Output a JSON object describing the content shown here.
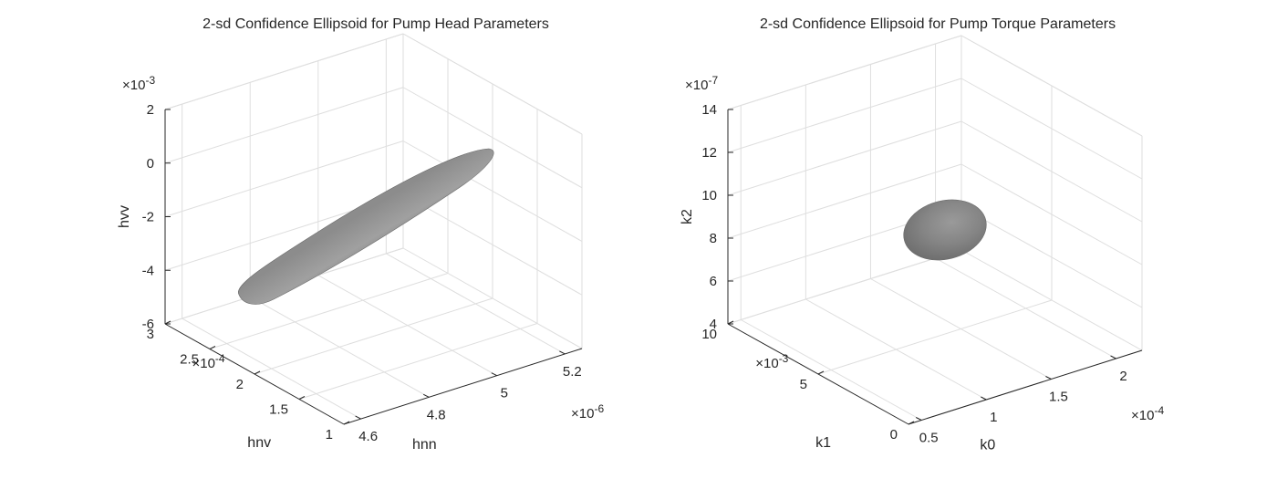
{
  "chart_data": [
    {
      "type": "3d-surface",
      "title": "2-sd Confidence Ellipsoid for Pump Head Parameters",
      "surface": "ellipsoid",
      "color": "#808080",
      "grid": true,
      "x": {
        "label": "hnn",
        "lim": [
          4.55,
          5.25
        ],
        "ticks": [
          4.6,
          4.8,
          5,
          5.2
        ],
        "tick_labels": [
          "4.6",
          "4.8",
          "5",
          "5.2"
        ],
        "multiplier": "×10",
        "exponent": "-6"
      },
      "y": {
        "label": "hnv",
        "lim": [
          1,
          3
        ],
        "ticks": [
          1,
          1.5,
          2,
          2.5,
          3
        ],
        "tick_labels": [
          "1",
          "1.5",
          "2",
          "2.5",
          "3"
        ],
        "multiplier": "×10",
        "exponent": "-4"
      },
      "z": {
        "label": "hvv",
        "lim": [
          -6,
          2
        ],
        "ticks": [
          -6,
          -4,
          -2,
          0,
          2
        ],
        "tick_labels": [
          "-6",
          "-4",
          "-2",
          "0",
          "2"
        ],
        "multiplier": "×10",
        "exponent": "-3"
      }
    },
    {
      "type": "3d-surface",
      "title": "2-sd Confidence Ellipsoid for Pump Torque Parameters",
      "surface": "ellipsoid",
      "color": "#808080",
      "grid": true,
      "x": {
        "label": "k0",
        "lim": [
          0.4,
          2.2
        ],
        "ticks": [
          0.5,
          1,
          1.5,
          2
        ],
        "tick_labels": [
          "0.5",
          "1",
          "1.5",
          "2"
        ],
        "multiplier": "×10",
        "exponent": "-4"
      },
      "y": {
        "label": "k1",
        "lim": [
          0,
          10
        ],
        "ticks": [
          0,
          5,
          10
        ],
        "tick_labels": [
          "0",
          "5",
          "10"
        ],
        "multiplier": "×10",
        "exponent": "-3"
      },
      "z": {
        "label": "k2",
        "lim": [
          4,
          14
        ],
        "ticks": [
          4,
          6,
          8,
          10,
          12,
          14
        ],
        "tick_labels": [
          "4",
          "6",
          "8",
          "10",
          "12",
          "14"
        ],
        "multiplier": "×10",
        "exponent": "-7"
      }
    }
  ]
}
